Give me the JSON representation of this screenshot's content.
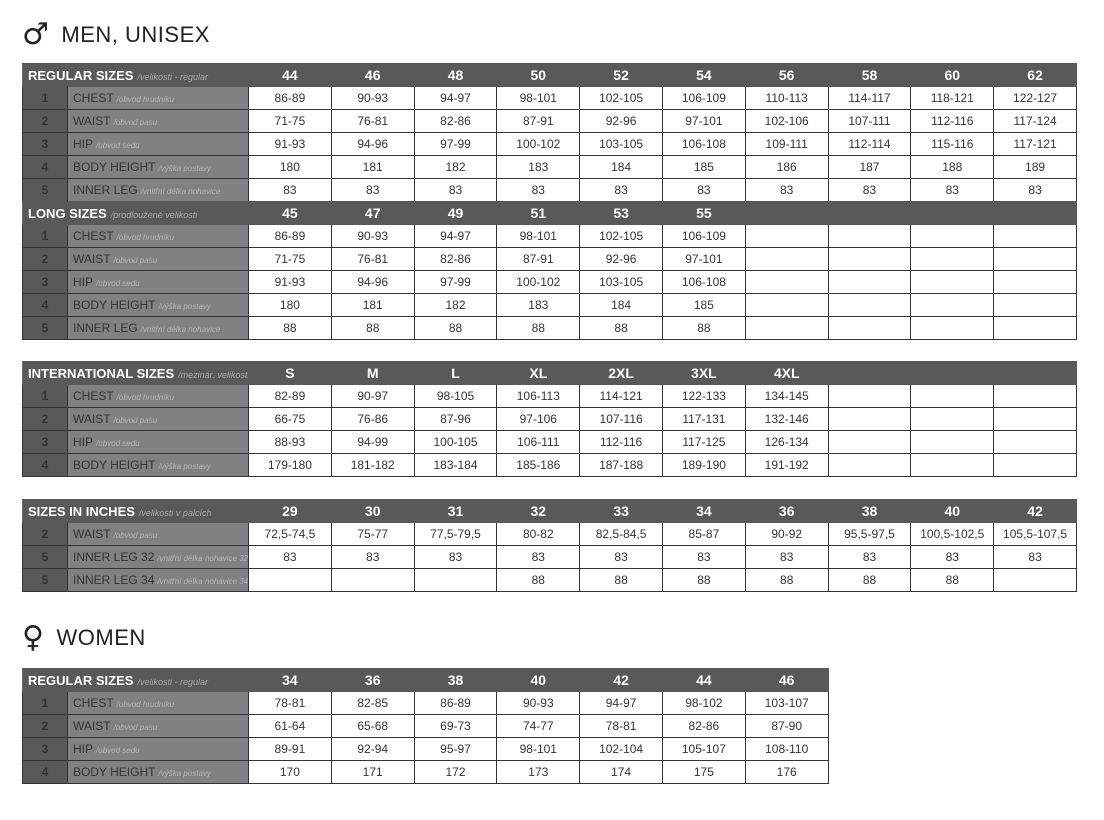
{
  "men": {
    "symbol": "♂",
    "title": "MEN, UNISEX",
    "tables": [
      {
        "title": "REGULAR SIZES",
        "subtitle": "/velikosti - regular",
        "ncols": 10,
        "columns": [
          "44",
          "46",
          "48",
          "50",
          "52",
          "54",
          "56",
          "58",
          "60",
          "62"
        ],
        "rows": [
          {
            "num": "1",
            "label": "CHEST",
            "sub": "/obvod hrudníku",
            "values": [
              "86-89",
              "90-93",
              "94-97",
              "98-101",
              "102-105",
              "106-109",
              "110-113",
              "114-117",
              "118-121",
              "122-127"
            ]
          },
          {
            "num": "2",
            "label": "WAIST",
            "sub": "/obvod pasu",
            "values": [
              "71-75",
              "76-81",
              "82-86",
              "87-91",
              "92-96",
              "97-101",
              "102-106",
              "107-111",
              "112-116",
              "117-124"
            ]
          },
          {
            "num": "3",
            "label": "HIP",
            "sub": "/obvod sedu",
            "values": [
              "91-93",
              "94-96",
              "97-99",
              "100-102",
              "103-105",
              "106-108",
              "109-111",
              "112-114",
              "115-116",
              "117-121"
            ]
          },
          {
            "num": "4",
            "label": "BODY HEIGHT",
            "sub": "/výška postavy",
            "values": [
              "180",
              "181",
              "182",
              "183",
              "184",
              "185",
              "186",
              "187",
              "188",
              "189"
            ]
          },
          {
            "num": "5",
            "label": "INNER LEG",
            "sub": "/vnitřní délka nohavice",
            "values": [
              "83",
              "83",
              "83",
              "83",
              "83",
              "83",
              "83",
              "83",
              "83",
              "83"
            ]
          }
        ]
      },
      {
        "title": "LONG SIZES",
        "subtitle": "/prodloužené velikosti",
        "ncols": 10,
        "columns": [
          "45",
          "47",
          "49",
          "51",
          "53",
          "55"
        ],
        "rows": [
          {
            "num": "1",
            "label": "CHEST",
            "sub": "/obvod hrudníku",
            "values": [
              "86-89",
              "90-93",
              "94-97",
              "98-101",
              "102-105",
              "106-109"
            ]
          },
          {
            "num": "2",
            "label": "WAIST",
            "sub": "/obvod pasu",
            "values": [
              "71-75",
              "76-81",
              "82-86",
              "87-91",
              "92-96",
              "97-101"
            ]
          },
          {
            "num": "3",
            "label": "HIP",
            "sub": "/obvod sedu",
            "values": [
              "91-93",
              "94-96",
              "97-99",
              "100-102",
              "103-105",
              "106-108"
            ]
          },
          {
            "num": "4",
            "label": "BODY HEIGHT",
            "sub": "/výška postavy",
            "values": [
              "180",
              "181",
              "182",
              "183",
              "184",
              "185"
            ]
          },
          {
            "num": "5",
            "label": "INNER LEG",
            "sub": "/vnitřní délka nohavice",
            "values": [
              "88",
              "88",
              "88",
              "88",
              "88",
              "88"
            ]
          }
        ]
      },
      {
        "title": "INTERNATIONAL SIZES",
        "subtitle": "/mezinár. velikosti",
        "ncols": 10,
        "columns": [
          "S",
          "M",
          "L",
          "XL",
          "2XL",
          "3XL",
          "4XL"
        ],
        "rows": [
          {
            "num": "1",
            "label": "CHEST",
            "sub": "/obvod hrudníku",
            "values": [
              "82-89",
              "90-97",
              "98-105",
              "106-113",
              "114-121",
              "122-133",
              "134-145"
            ]
          },
          {
            "num": "2",
            "label": "WAIST",
            "sub": "/obvod pasu",
            "values": [
              "66-75",
              "76-86",
              "87-96",
              "97-106",
              "107-116",
              "117-131",
              "132-146"
            ]
          },
          {
            "num": "3",
            "label": "HIP",
            "sub": "/obvod sedu",
            "values": [
              "88-93",
              "94-99",
              "100-105",
              "106-111",
              "112-116",
              "117-125",
              "126-134"
            ]
          },
          {
            "num": "4",
            "label": "BODY HEIGHT",
            "sub": "/výška postavy",
            "values": [
              "179-180",
              "181-182",
              "183-184",
              "185-186",
              "187-188",
              "189-190",
              "191-192"
            ]
          }
        ]
      },
      {
        "title": "SIZES IN INCHES",
        "subtitle": "/velikosti v palcích",
        "ncols": 10,
        "columns": [
          "29",
          "30",
          "31",
          "32",
          "33",
          "34",
          "36",
          "38",
          "40",
          "42"
        ],
        "rows": [
          {
            "num": "2",
            "label": "WAIST",
            "sub": "/obvod pasu",
            "values": [
              "72,5-74,5",
              "75-77",
              "77,5-79,5",
              "80-82",
              "82,5-84,5",
              "85-87",
              "90-92",
              "95,5-97,5",
              "100,5-102,5",
              "105,5-107,5"
            ]
          },
          {
            "num": "5",
            "label": "INNER LEG 32",
            "sub": "/vnitřní délka nohavice 32",
            "values": [
              "83",
              "83",
              "83",
              "83",
              "83",
              "83",
              "83",
              "83",
              "83",
              "83"
            ]
          },
          {
            "num": "5",
            "label": "INNER LEG 34",
            "sub": "/vnitřní délka nohavice 34",
            "values": [
              "",
              "",
              "",
              "88",
              "88",
              "88",
              "88",
              "88",
              "88",
              ""
            ]
          }
        ]
      }
    ]
  },
  "women": {
    "symbol": "♀",
    "title": "WOMEN",
    "tables": [
      {
        "title": "REGULAR SIZES",
        "subtitle": "/velikosti - regular",
        "ncols": 7,
        "columns": [
          "34",
          "36",
          "38",
          "40",
          "42",
          "44",
          "46"
        ],
        "rows": [
          {
            "num": "1",
            "label": "CHEST",
            "sub": "/obvod hrudníku",
            "values": [
              "78-81",
              "82-85",
              "86-89",
              "90-93",
              "94-97",
              "98-102",
              "103-107"
            ]
          },
          {
            "num": "2",
            "label": "WAIST",
            "sub": "/obvod pasu",
            "values": [
              "61-64",
              "65-68",
              "69-73",
              "74-77",
              "78-81",
              "82-86",
              "87-90"
            ]
          },
          {
            "num": "3",
            "label": "HIP",
            "sub": "/obvod sedu",
            "values": [
              "89-91",
              "92-94",
              "95-97",
              "98-101",
              "102-104",
              "105-107",
              "108-110"
            ]
          },
          {
            "num": "4",
            "label": "BODY HEIGHT",
            "sub": "/výška postavy",
            "values": [
              "170",
              "171",
              "172",
              "173",
              "174",
              "175",
              "176"
            ]
          }
        ]
      }
    ]
  }
}
